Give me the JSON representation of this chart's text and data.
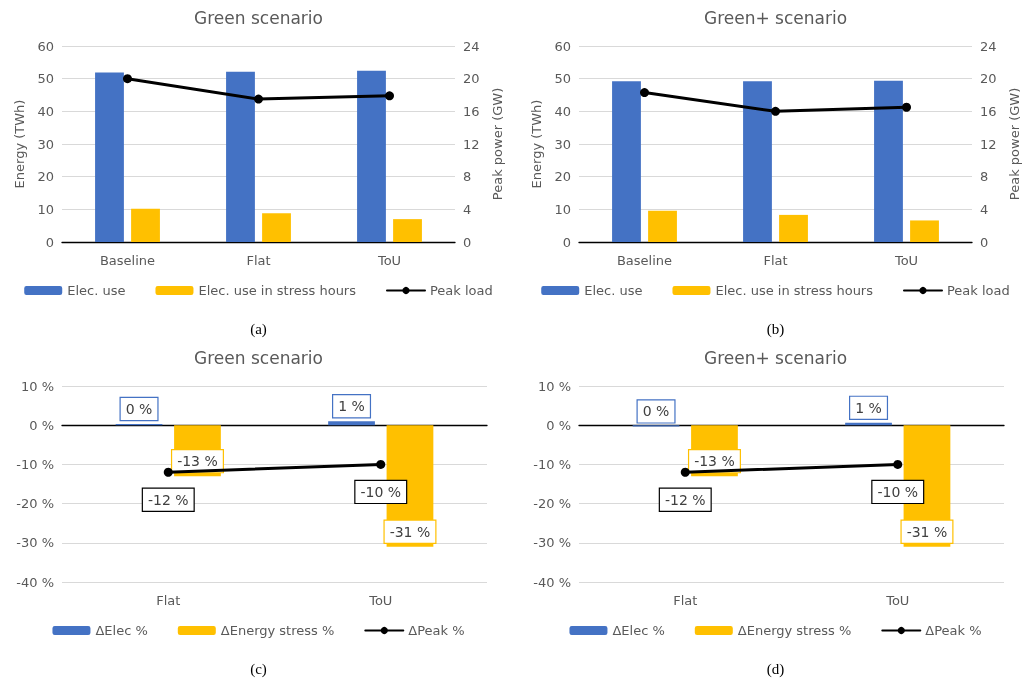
{
  "chart_data": [
    {
      "type": "bar",
      "title": "Green scenario",
      "ylabel": "Energy (TWh)",
      "y2label": "Peak power (GW)",
      "categories": [
        "Baseline",
        "Flat",
        "ToU"
      ],
      "series": [
        {
          "name": "Elec. use",
          "color": "#4472c4",
          "values": [
            51.9,
            52.1,
            52.4
          ]
        },
        {
          "name": "Elec. use in stress hours",
          "color": "#ffc000",
          "values": [
            10.2,
            8.8,
            7.0
          ]
        },
        {
          "name": "Peak load",
          "type": "line",
          "axis": "y2",
          "color": "#000000",
          "values": [
            20.0,
            17.5,
            17.9
          ]
        }
      ],
      "ylim": [
        0,
        60
      ],
      "yticks": [
        0,
        10,
        20,
        30,
        40,
        50,
        60
      ],
      "y2lim": [
        0,
        24
      ],
      "y2ticks": [
        0,
        4,
        8,
        12,
        16,
        20,
        24
      ],
      "grid": "y",
      "legend": "bottom",
      "marker": "circle",
      "line_style": "solid",
      "annotations": [
        "(a)"
      ]
    },
    {
      "type": "bar",
      "title": "Green+ scenario",
      "ylabel": "Energy (TWh)",
      "y2label": "Peak power (GW)",
      "categories": [
        "Baseline",
        "Flat",
        "ToU"
      ],
      "series": [
        {
          "name": "Elec. use",
          "color": "#4472c4",
          "values": [
            49.2,
            49.2,
            49.4
          ]
        },
        {
          "name": "Elec. use in stress hours",
          "color": "#ffc000",
          "values": [
            9.6,
            8.3,
            6.6
          ]
        },
        {
          "name": "Peak load",
          "type": "line",
          "axis": "y2",
          "color": "#000000",
          "values": [
            18.3,
            16.0,
            16.5
          ]
        }
      ],
      "ylim": [
        0,
        60
      ],
      "yticks": [
        0,
        10,
        20,
        30,
        40,
        50,
        60
      ],
      "y2lim": [
        0,
        24
      ],
      "y2ticks": [
        0,
        4,
        8,
        12,
        16,
        20,
        24
      ],
      "grid": "y",
      "legend": "bottom",
      "marker": "circle",
      "line_style": "solid",
      "annotations": [
        "(b)"
      ]
    },
    {
      "type": "bar",
      "title": "Green scenario",
      "categories": [
        "Flat",
        "ToU"
      ],
      "series": [
        {
          "name": "ΔElec %",
          "color": "#4472c4",
          "values": [
            0.3,
            1
          ],
          "value_labels": [
            "0 %",
            "1 %"
          ]
        },
        {
          "name": "ΔEnergy stress %",
          "color": "#ffc000",
          "values": [
            -13,
            -31
          ],
          "value_labels": [
            "-13 %",
            "-31 %"
          ]
        },
        {
          "name": "ΔPeak %",
          "type": "line",
          "color": "#000000",
          "values": [
            -12,
            -10
          ],
          "value_labels": [
            "-12 %",
            "-10 %"
          ]
        }
      ],
      "ylim": [
        -40,
        10
      ],
      "yticks": [
        {
          "value": -40,
          "label": "-40 %"
        },
        {
          "value": -30,
          "label": "-30 %"
        },
        {
          "value": -20,
          "label": "-20 %"
        },
        {
          "value": -10,
          "label": "-10 %"
        },
        {
          "value": 0,
          "label": "0 %"
        },
        {
          "value": 10,
          "label": "10 %"
        }
      ],
      "grid": "y",
      "legend": "bottom",
      "marker": "circle",
      "line_style": "solid",
      "annotations": [
        "(c)"
      ]
    },
    {
      "type": "bar",
      "title": "Green+ scenario",
      "categories": [
        "Flat",
        "ToU"
      ],
      "series": [
        {
          "name": "ΔElec %",
          "color": "#4472c4",
          "values": [
            -0.3,
            0.6
          ],
          "value_labels": [
            "0 %",
            "1 %"
          ]
        },
        {
          "name": "ΔEnergy stress %",
          "color": "#ffc000",
          "values": [
            -13,
            -31
          ],
          "value_labels": [
            "-13 %",
            "-31 %"
          ]
        },
        {
          "name": "ΔPeak %",
          "type": "line",
          "color": "#000000",
          "values": [
            -12,
            -10
          ],
          "value_labels": [
            "-12 %",
            "-10 %"
          ]
        }
      ],
      "ylim": [
        -40,
        10
      ],
      "yticks": [
        {
          "value": -40,
          "label": "-40 %"
        },
        {
          "value": -30,
          "label": "-30 %"
        },
        {
          "value": -20,
          "label": "-20 %"
        },
        {
          "value": -10,
          "label": "-10 %"
        },
        {
          "value": 0,
          "label": "0 %"
        },
        {
          "value": 10,
          "label": "10 %"
        }
      ],
      "grid": "y",
      "legend": "bottom",
      "marker": "circle",
      "line_style": "solid",
      "annotations": [
        "(d)"
      ]
    }
  ]
}
